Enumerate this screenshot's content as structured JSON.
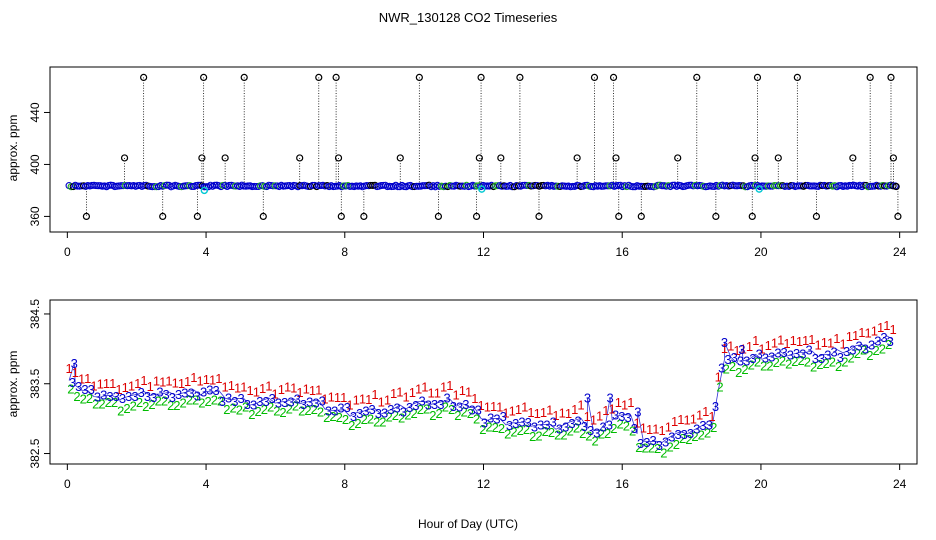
{
  "figure": {
    "title": "NWR_130128  CO2 Timeseries",
    "xlabel": "Hour of Day (UTC)"
  },
  "colors": {
    "axis": "#000000",
    "marker_raw": "#000000",
    "marker_main": "#0000cc",
    "marker_cyan": "#00c8d2",
    "marker_green": "#22aa22",
    "label_1": "#dd0000",
    "label_2": "#00bb00",
    "label_3": "#0000cc"
  },
  "chart_data": [
    {
      "type": "scatter",
      "panel": "top",
      "title": "NWR_130128  CO2 Timeseries",
      "xlabel": "",
      "ylabel": "approx. ppm",
      "xlim": [
        -0.5,
        24.5
      ],
      "ylim": [
        348,
        475
      ],
      "xticks": [
        0,
        4,
        8,
        12,
        16,
        20,
        24
      ],
      "yticks": [
        360,
        400,
        440
      ],
      "baseline_ppm": 383.4,
      "baseline_x_range": [
        0.05,
        23.9
      ],
      "outliers": [
        {
          "x": 0.55,
          "y": 360
        },
        {
          "x": 1.65,
          "y": 405
        },
        {
          "x": 2.2,
          "y": 467
        },
        {
          "x": 2.75,
          "y": 360
        },
        {
          "x": 3.75,
          "y": 360
        },
        {
          "x": 3.88,
          "y": 405
        },
        {
          "x": 3.93,
          "y": 467
        },
        {
          "x": 4.55,
          "y": 405
        },
        {
          "x": 5.1,
          "y": 467
        },
        {
          "x": 5.65,
          "y": 360
        },
        {
          "x": 6.7,
          "y": 405
        },
        {
          "x": 7.25,
          "y": 467
        },
        {
          "x": 7.75,
          "y": 467
        },
        {
          "x": 7.82,
          "y": 405
        },
        {
          "x": 7.9,
          "y": 360
        },
        {
          "x": 8.55,
          "y": 360
        },
        {
          "x": 9.6,
          "y": 405
        },
        {
          "x": 10.15,
          "y": 467
        },
        {
          "x": 10.7,
          "y": 360
        },
        {
          "x": 11.8,
          "y": 360
        },
        {
          "x": 11.88,
          "y": 405
        },
        {
          "x": 11.93,
          "y": 467
        },
        {
          "x": 12.5,
          "y": 405
        },
        {
          "x": 13.05,
          "y": 467
        },
        {
          "x": 13.6,
          "y": 360
        },
        {
          "x": 14.7,
          "y": 405
        },
        {
          "x": 15.2,
          "y": 467
        },
        {
          "x": 15.75,
          "y": 467
        },
        {
          "x": 15.82,
          "y": 405
        },
        {
          "x": 15.9,
          "y": 360
        },
        {
          "x": 16.55,
          "y": 360
        },
        {
          "x": 17.6,
          "y": 405
        },
        {
          "x": 18.15,
          "y": 467
        },
        {
          "x": 18.7,
          "y": 360
        },
        {
          "x": 19.75,
          "y": 360
        },
        {
          "x": 19.83,
          "y": 405
        },
        {
          "x": 19.9,
          "y": 467
        },
        {
          "x": 20.5,
          "y": 405
        },
        {
          "x": 21.05,
          "y": 467
        },
        {
          "x": 21.6,
          "y": 360
        },
        {
          "x": 22.65,
          "y": 405
        },
        {
          "x": 23.15,
          "y": 467
        },
        {
          "x": 23.75,
          "y": 467
        },
        {
          "x": 23.82,
          "y": 405
        },
        {
          "x": 23.9,
          "y": 383
        },
        {
          "x": 23.95,
          "y": 360
        }
      ],
      "cyan_points": [
        {
          "x": 3.95,
          "y": 380
        },
        {
          "x": 11.95,
          "y": 381
        },
        {
          "x": 19.95,
          "y": 381
        }
      ]
    },
    {
      "type": "scatter",
      "panel": "bottom",
      "xlabel": "Hour of Day (UTC)",
      "ylabel": "approx. ppm",
      "xlim": [
        -0.5,
        24.5
      ],
      "ylim": [
        382.35,
        384.7
      ],
      "xticks": [
        0,
        4,
        8,
        12,
        16,
        20,
        24
      ],
      "yticks": [
        382.5,
        383.5,
        384.5
      ],
      "series": [
        {
          "name": "1",
          "offset": 0.18
        },
        {
          "name": "2",
          "offset": -0.12
        },
        {
          "name": "3",
          "offset": 0.0
        }
      ],
      "series_step_hours": 0.18,
      "anchors": [
        {
          "x": 0.1,
          "y": 383.55
        },
        {
          "x": 0.4,
          "y": 383.35
        },
        {
          "x": 1.5,
          "y": 383.25
        },
        {
          "x": 2.5,
          "y": 383.3
        },
        {
          "x": 3.5,
          "y": 383.3
        },
        {
          "x": 4.0,
          "y": 383.35
        },
        {
          "x": 5.0,
          "y": 383.2
        },
        {
          "x": 6.0,
          "y": 383.2
        },
        {
          "x": 7.0,
          "y": 383.2
        },
        {
          "x": 8.0,
          "y": 383.05
        },
        {
          "x": 9.0,
          "y": 383.05
        },
        {
          "x": 10.0,
          "y": 383.15
        },
        {
          "x": 11.0,
          "y": 383.2
        },
        {
          "x": 11.5,
          "y": 383.15
        },
        {
          "x": 12.0,
          "y": 382.95
        },
        {
          "x": 13.0,
          "y": 382.9
        },
        {
          "x": 14.0,
          "y": 382.85
        },
        {
          "x": 14.8,
          "y": 382.9
        },
        {
          "x": 15.3,
          "y": 382.75
        },
        {
          "x": 15.8,
          "y": 383.0
        },
        {
          "x": 16.3,
          "y": 382.95
        },
        {
          "x": 16.5,
          "y": 382.65
        },
        {
          "x": 17.0,
          "y": 382.6
        },
        {
          "x": 18.0,
          "y": 382.8
        },
        {
          "x": 18.6,
          "y": 382.85
        },
        {
          "x": 18.9,
          "y": 383.8
        },
        {
          "x": 19.5,
          "y": 383.8
        },
        {
          "x": 20.0,
          "y": 383.85
        },
        {
          "x": 21.0,
          "y": 383.9
        },
        {
          "x": 22.0,
          "y": 383.85
        },
        {
          "x": 23.0,
          "y": 384.0
        },
        {
          "x": 23.8,
          "y": 384.1
        }
      ],
      "spikes": [
        {
          "x": 0.2,
          "y": 383.8
        },
        {
          "x": 15.0,
          "y": 383.3
        },
        {
          "x": 15.65,
          "y": 383.3
        },
        {
          "x": 16.45,
          "y": 383.1
        },
        {
          "x": 18.95,
          "y": 384.1
        },
        {
          "x": 19.45,
          "y": 384.0
        }
      ]
    }
  ]
}
